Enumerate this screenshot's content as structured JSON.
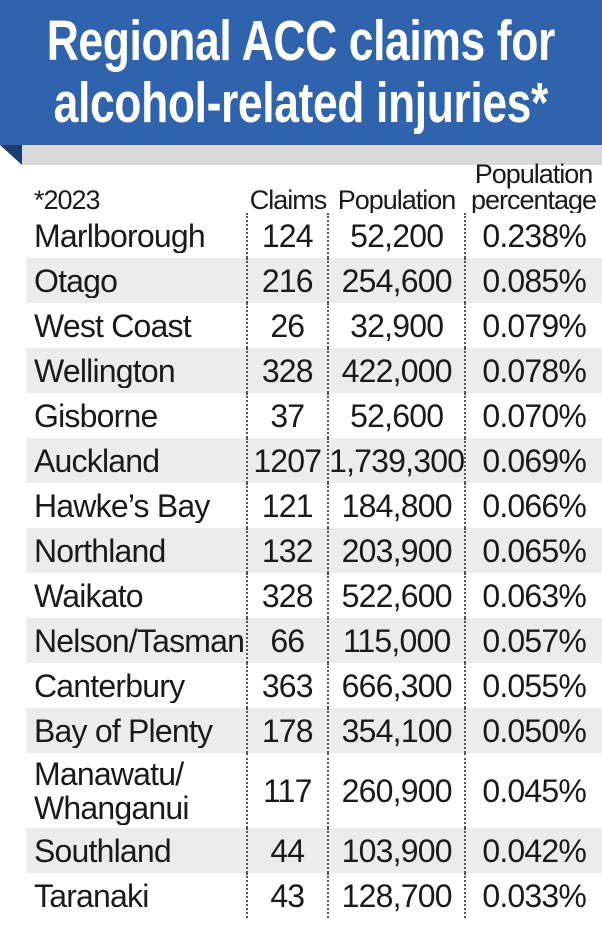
{
  "header": {
    "title": "Regional ACC claims for\nalcohol-related injuries*"
  },
  "table": {
    "columns": [
      "*2023",
      "Claims",
      "Population",
      "Population\npercentage"
    ],
    "rows": [
      [
        "Marlborough",
        "124",
        "52,200",
        "0.238%"
      ],
      [
        "Otago",
        "216",
        "254,600",
        "0.085%"
      ],
      [
        "West Coast",
        "26",
        "32,900",
        "0.079%"
      ],
      [
        "Wellington",
        "328",
        "422,000",
        "0.078%"
      ],
      [
        "Gisborne",
        "37",
        "52,600",
        "0.070%"
      ],
      [
        "Auckland",
        "1207",
        "1,739,300",
        "0.069%"
      ],
      [
        "Hawke’s Bay",
        "121",
        "184,800",
        "0.066%"
      ],
      [
        "Northland",
        "132",
        "203,900",
        "0.065%"
      ],
      [
        "Waikato",
        "328",
        "522,600",
        "0.063%"
      ],
      [
        "Nelson/Tasman",
        "66",
        "115,000",
        "0.057%"
      ],
      [
        "Canterbury",
        "363",
        "666,300",
        "0.055%"
      ],
      [
        "Bay of Plenty",
        "178",
        "354,100",
        "0.050%"
      ],
      [
        "Manawatu/\nWhanganui",
        "117",
        "260,900",
        "0.045%"
      ],
      [
        "Southland",
        "44",
        "103,900",
        "0.042%"
      ],
      [
        "Taranaki",
        "43",
        "128,700",
        "0.033%"
      ]
    ]
  }
}
